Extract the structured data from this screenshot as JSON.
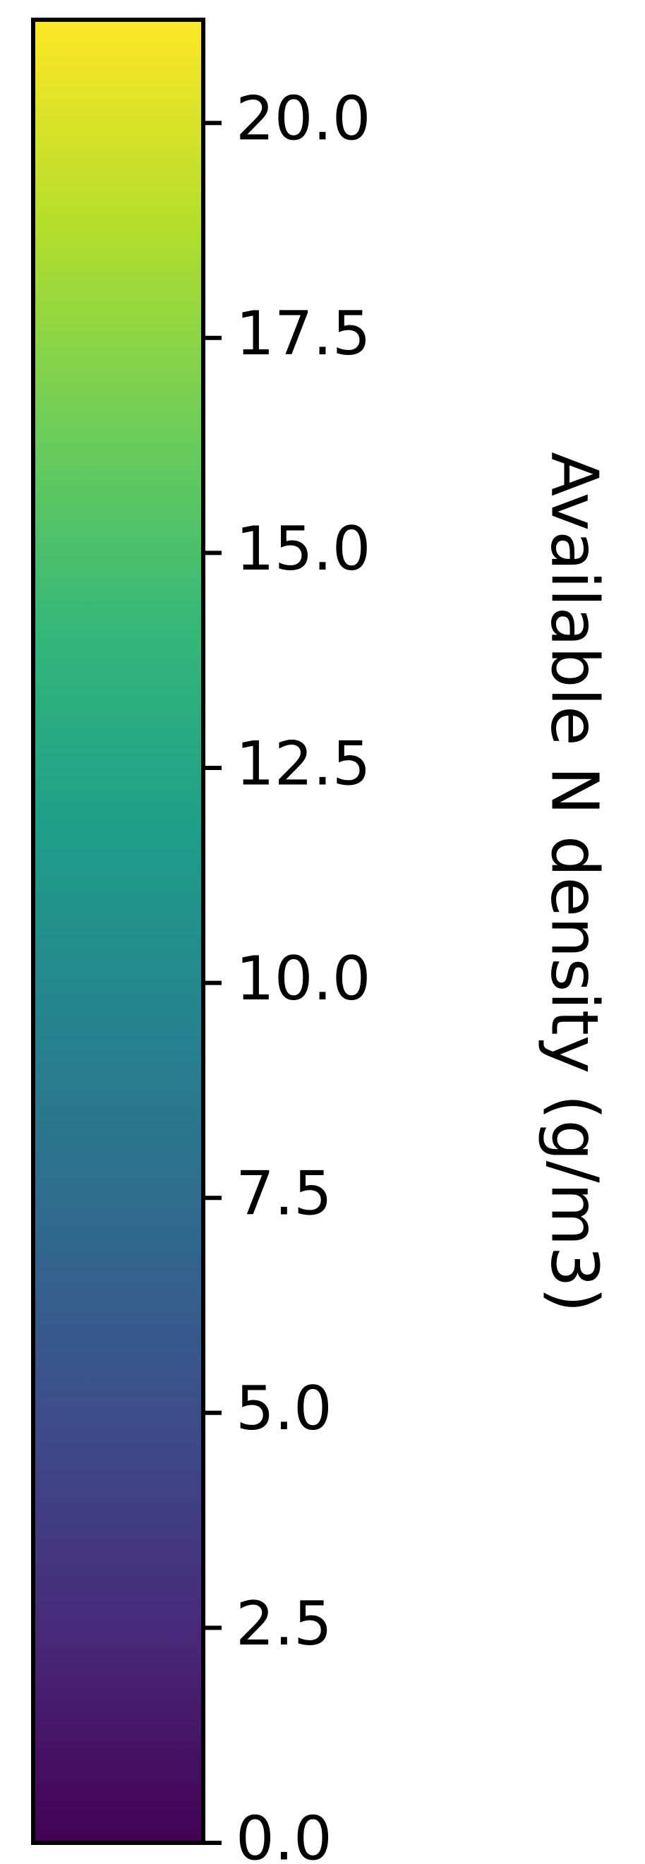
{
  "chart_data": {
    "type": "colorbar",
    "colormap": "viridis",
    "orientation": "vertical",
    "label": "Available N density (g/m3)",
    "vmin": 0.0,
    "vmax": 21.2,
    "ticks": [
      0.0,
      2.5,
      5.0,
      7.5,
      10.0,
      12.5,
      15.0,
      17.5,
      20.0
    ],
    "tick_labels": [
      "0.0",
      "2.5",
      "5.0",
      "7.5",
      "10.0",
      "12.5",
      "15.0",
      "17.5",
      "20.0"
    ],
    "color_stops": [
      "#440154",
      "#482878",
      "#3e4a89",
      "#31688e",
      "#26828e",
      "#1f9e89",
      "#35b779",
      "#6ece58",
      "#b5de2b",
      "#fde725"
    ]
  }
}
